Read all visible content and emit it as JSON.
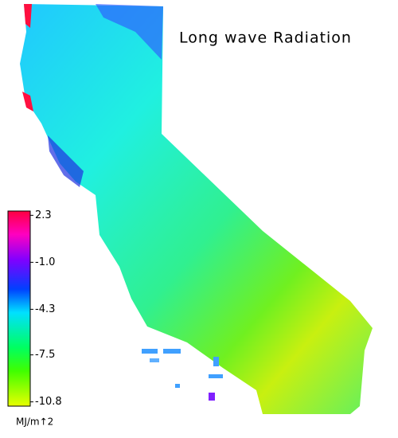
{
  "map": {
    "title": "Long wave Radiation",
    "colorbar": {
      "unit": "MJ/m↑2",
      "clim": [
        -11.1,
        2.6
      ],
      "ticks": [
        2.3,
        {
          "value": -1,
          "label": "-1.0"
        },
        -4.3,
        -7.5,
        -10.8
      ]
    }
  }
}
